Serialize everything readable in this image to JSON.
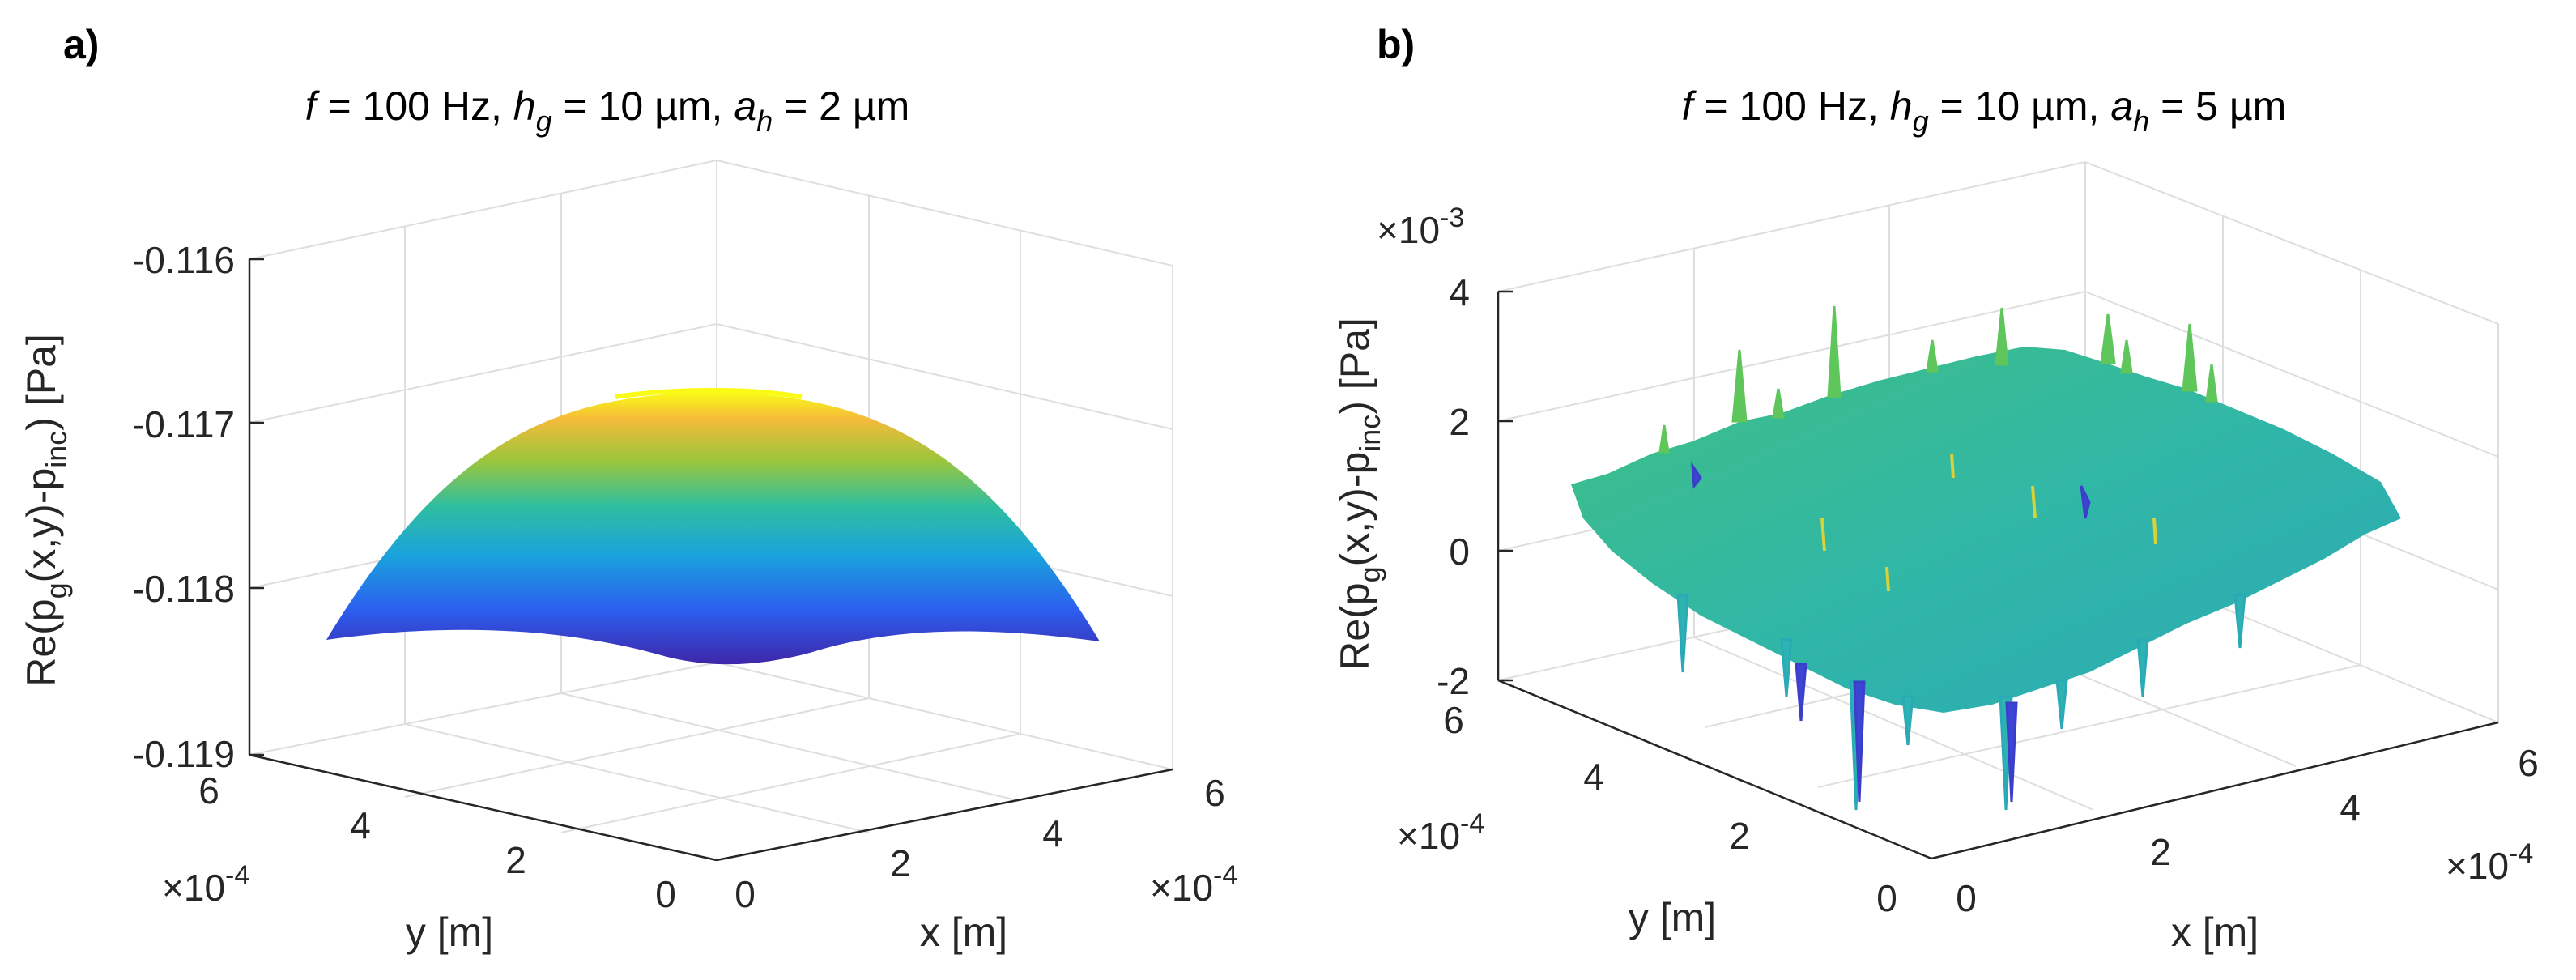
{
  "chart_data": [
    {
      "type": "surface",
      "panel_label": "a)",
      "title": {
        "f": "f",
        "f_rest": " = 100 Hz, ",
        "h": "h",
        "h_sub": "g",
        "h_rest": " = 10 µm, ",
        "a": "a",
        "a_sub": "h",
        "a_rest": " = 2 µm"
      },
      "zlabel": {
        "pre": "Re(p",
        "sub1": "g",
        "mid": "(x,y)-p",
        "sub2": "inc",
        "post": ") [Pa]"
      },
      "xlabel": "x [m]",
      "ylabel": "y [m]",
      "zticks": [
        "-0.116",
        "-0.117",
        "-0.118",
        "-0.119"
      ],
      "xticks": [
        "0",
        "2",
        "4",
        "6"
      ],
      "yticks": [
        "0",
        "2",
        "4",
        "6"
      ],
      "x_exponent": "×10",
      "x_exponent_power": "-4",
      "y_exponent": "×10",
      "y_exponent_power": "-4",
      "zlim": [
        -0.119,
        -0.116
      ],
      "xlim": [
        0,
        0.0006
      ],
      "ylim": [
        0,
        0.0006
      ],
      "grid": true,
      "colormap": "parula",
      "surface": {
        "shape": "dome",
        "peak_z": -0.11685,
        "edge_corner_z": -0.11833,
        "front_corner_z": -0.1184
      },
      "colors": {
        "low": "#3e26a8",
        "mid": "#2fb9a8",
        "high": "#f9fb15"
      }
    },
    {
      "type": "surface",
      "panel_label": "b)",
      "title": {
        "f": "f",
        "f_rest": " = 100 Hz, ",
        "h": "h",
        "h_sub": "g",
        "h_rest": " = 10 µm, ",
        "a": "a",
        "a_sub": "h",
        "a_rest": " = 5 µm"
      },
      "zlabel": {
        "pre": "Re(p",
        "sub1": "g",
        "mid": "(x,y)-p",
        "sub2": "inc",
        "post": ") [Pa]"
      },
      "xlabel": "x [m]",
      "ylabel": "y [m]",
      "zticks": [
        "4",
        "2",
        "0",
        "-2"
      ],
      "z_exponent": "×10",
      "z_exponent_power": "-3",
      "xticks": [
        "0",
        "2",
        "4",
        "6"
      ],
      "yticks": [
        "0",
        "2",
        "4",
        "6"
      ],
      "x_exponent": "×10",
      "x_exponent_power": "-4",
      "y_exponent": "×10",
      "y_exponent_power": "-4",
      "zlim": [
        -0.002,
        0.004
      ],
      "xlim": [
        0,
        0.0006
      ],
      "ylim": [
        0,
        0.0006
      ],
      "grid": true,
      "colormap": "parula",
      "surface": {
        "shape": "noisy-flat",
        "mean_z": 0.0,
        "noise_range": [
          -0.0021,
          0.0037
        ]
      },
      "colors": {
        "low": "#3e26a8",
        "mid": "#2fb9a8",
        "high": "#f9fb15"
      }
    }
  ]
}
